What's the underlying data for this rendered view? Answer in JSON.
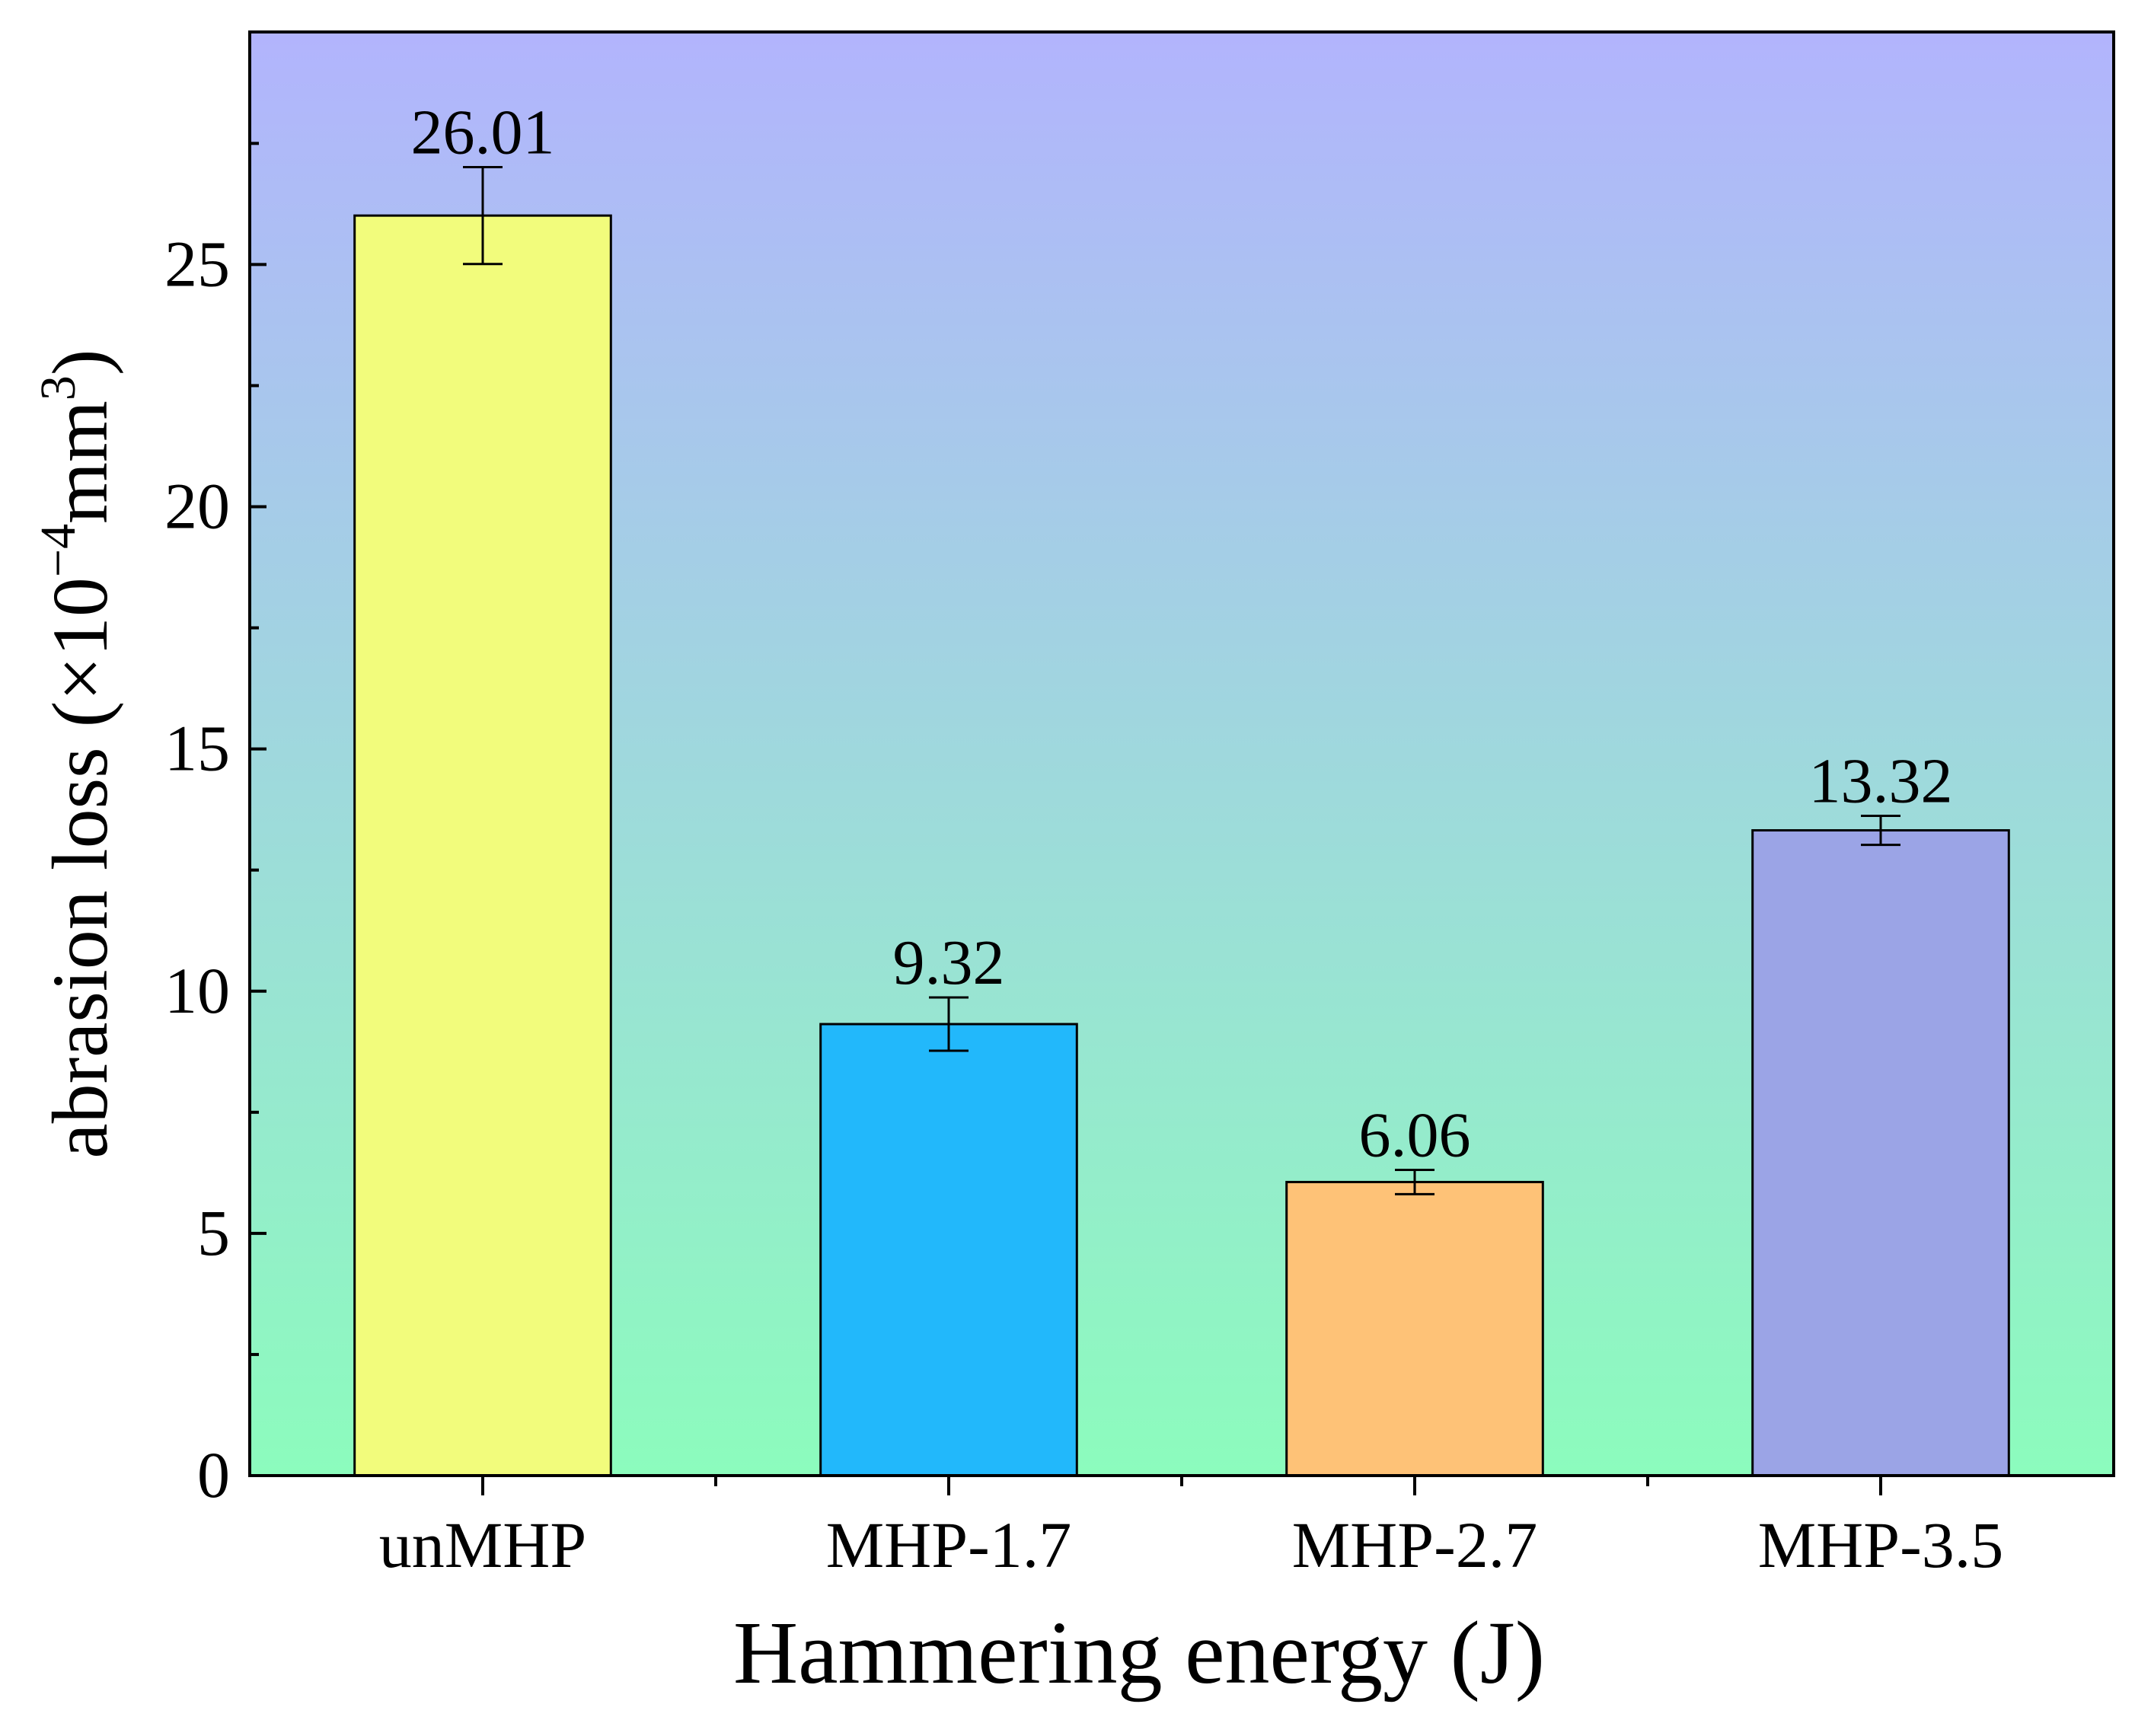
{
  "chart_data": {
    "type": "bar",
    "title": "",
    "xlabel": "Hammering energy (J)",
    "ylabel_main": "abrasion loss (×10",
    "ylabel_sup1": "−4",
    "ylabel_mid": "mm",
    "ylabel_sup2": "3",
    "ylabel_end": ")",
    "categories": [
      "unMHP",
      "MHP-1.7",
      "MHP-2.7",
      "MHP-3.5"
    ],
    "values": [
      26.01,
      9.32,
      6.06,
      13.32
    ],
    "value_labels": [
      "26.01",
      "9.32",
      "6.06",
      "13.32"
    ],
    "errors": [
      1.0,
      0.55,
      0.25,
      0.3
    ],
    "bar_colors": [
      "#f2fc7c",
      "#22b8fb",
      "#fec277",
      "#9ba4e6"
    ],
    "background_gradient": [
      "#b2b4fd",
      "#8cfcbd"
    ],
    "ylim": [
      0,
      29.8
    ],
    "yticks": [
      0,
      5,
      10,
      15,
      20,
      25
    ],
    "ytick_labels": [
      "0",
      "5",
      "10",
      "15",
      "20",
      "25"
    ],
    "grid": false,
    "legend": "none"
  }
}
